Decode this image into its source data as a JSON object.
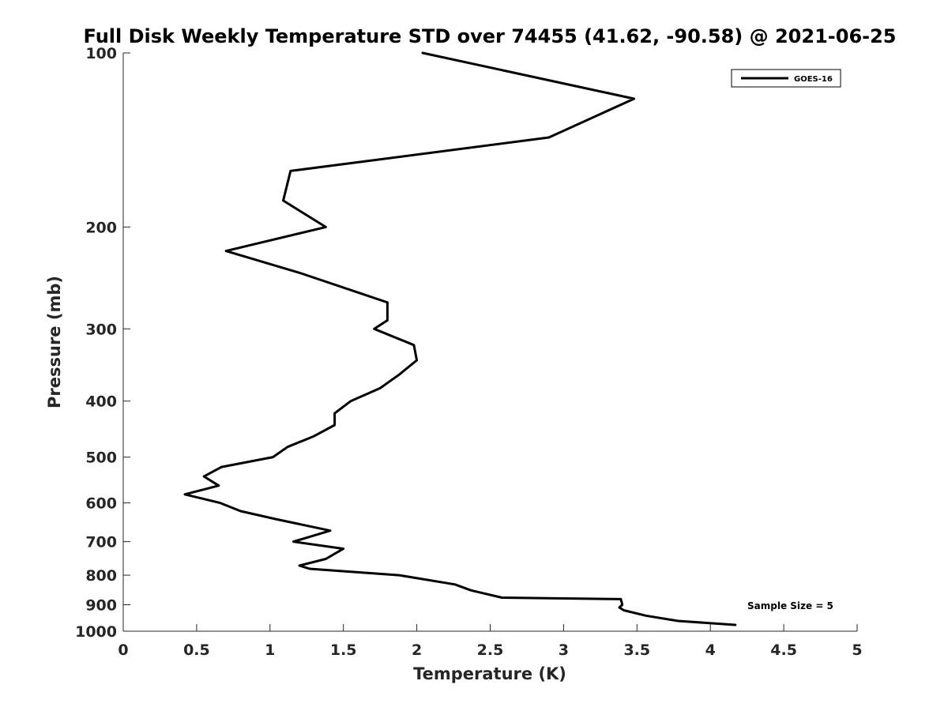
{
  "chart_data": {
    "type": "line",
    "title": "Full Disk Weekly Temperature STD over 74455 (41.62, -90.58) @ 2021-06-25",
    "xlabel": "Temperature (K)",
    "ylabel": "Pressure (mb)",
    "xlim": [
      0,
      5
    ],
    "ylim": [
      100,
      1000
    ],
    "y_scale": "log",
    "y_reversed": true,
    "grid": false,
    "x_ticks": [
      0,
      0.5,
      1,
      1.5,
      2,
      2.5,
      3,
      3.5,
      4,
      4.5,
      5
    ],
    "x_tick_labels": [
      "0",
      "0.5",
      "1",
      "1.5",
      "2",
      "2.5",
      "3",
      "3.5",
      "4",
      "4.5",
      "5"
    ],
    "y_ticks": [
      100,
      200,
      300,
      400,
      500,
      600,
      700,
      800,
      900,
      1000
    ],
    "y_tick_labels": [
      "100",
      "200",
      "300",
      "400",
      "500",
      "600",
      "700",
      "800",
      "900",
      "1000"
    ],
    "legend_position": "top-right",
    "series": [
      {
        "name": "GOES-16",
        "color": "#000000",
        "x": [
          2.04,
          3.48,
          2.9,
          1.14,
          1.09,
          1.38,
          0.7,
          1.2,
          1.8,
          1.8,
          1.71,
          1.98,
          2.0,
          1.88,
          1.75,
          1.55,
          1.44,
          1.44,
          1.3,
          1.12,
          1.02,
          0.67,
          0.55,
          0.65,
          0.42,
          0.66,
          0.8,
          1.04,
          1.41,
          1.16,
          1.5,
          1.38,
          1.2,
          1.27,
          1.88,
          2.26,
          2.37,
          2.58,
          3.39,
          3.4,
          3.38,
          3.41,
          3.56,
          3.78,
          4.17
        ],
        "y": [
          100,
          120,
          140,
          160,
          180,
          200,
          220,
          240,
          270,
          290,
          300,
          320,
          340,
          360,
          380,
          400,
          420,
          440,
          460,
          480,
          500,
          520,
          540,
          560,
          580,
          600,
          620,
          640,
          670,
          700,
          720,
          750,
          770,
          780,
          800,
          830,
          850,
          875,
          880,
          900,
          910,
          920,
          940,
          960,
          975
        ]
      }
    ],
    "annotations": [
      {
        "text": "Sample Size = 5",
        "position": "bottom-right"
      }
    ]
  }
}
